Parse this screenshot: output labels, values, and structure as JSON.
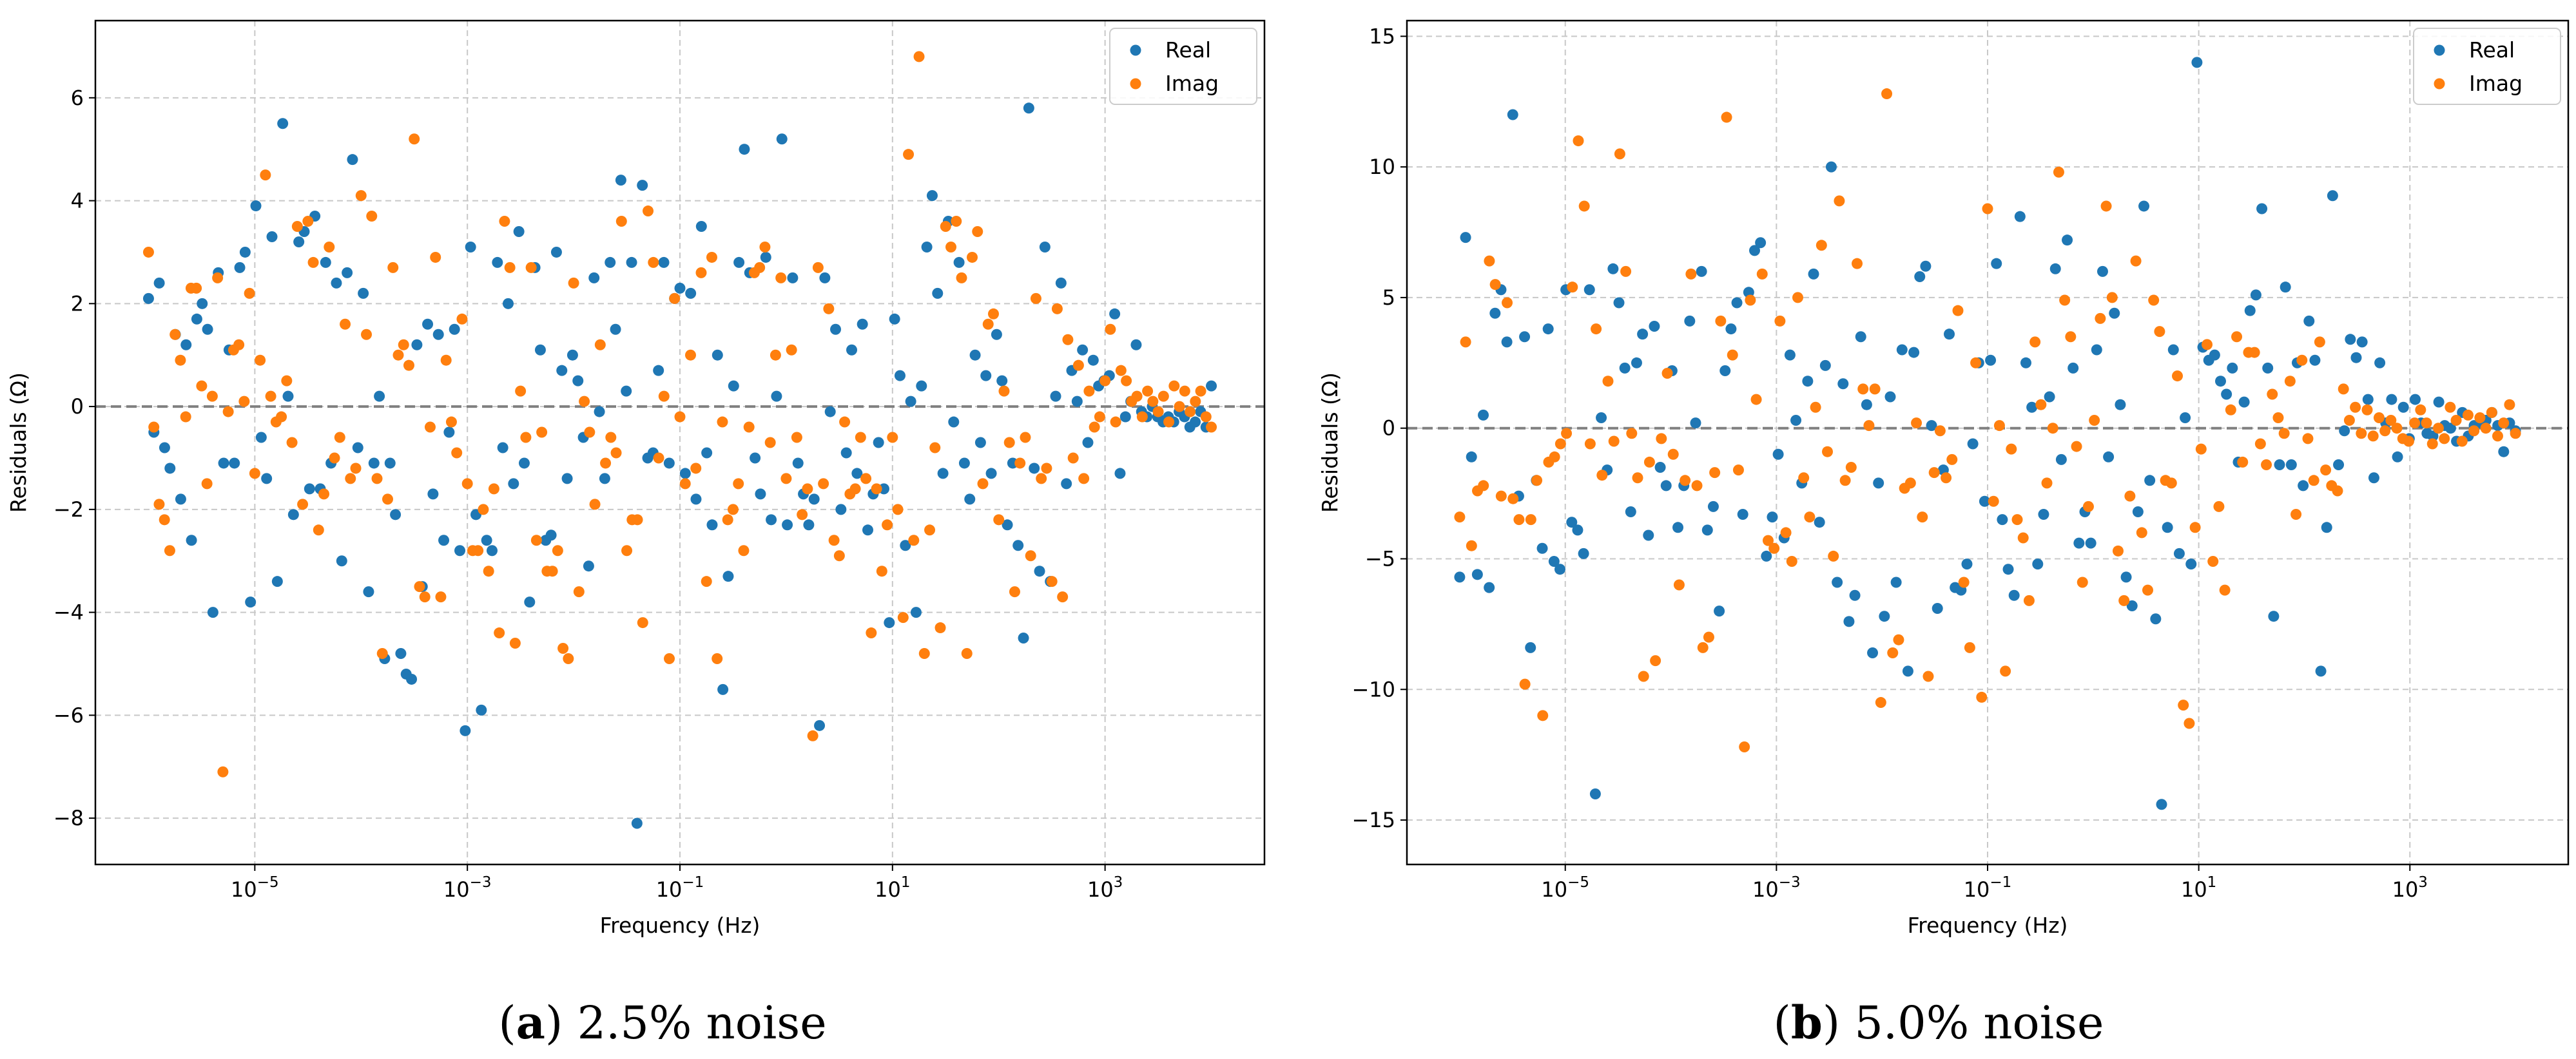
{
  "colors": {
    "real": "#1f77b4",
    "imag": "#ff7f0e",
    "grid": "#c8c8c8",
    "zero_line": "#808080"
  },
  "captions": [
    {
      "open": "(",
      "letter": "a",
      "close": ")",
      "text": " 2.5% noise"
    },
    {
      "open": "(",
      "letter": "b",
      "close": ")",
      "text": " 5.0% noise"
    }
  ],
  "chart_data": [
    {
      "type": "scatter",
      "xscale": "log",
      "xlabel": "Frequency (Hz)",
      "ylabel": "Residuals (Ω)",
      "xlim": [
        -6.5,
        4.5
      ],
      "ylim": [
        -8.9,
        7.5
      ],
      "grid": true,
      "legend": {
        "position": "top-right",
        "entries": [
          "Real",
          "Imag"
        ]
      },
      "xticks": [
        {
          "value": -5,
          "base": "10",
          "exp": "−5"
        },
        {
          "value": -3,
          "base": "10",
          "exp": "−3"
        },
        {
          "value": -1,
          "base": "10",
          "exp": "−1"
        },
        {
          "value": 1,
          "base": "10",
          "exp": "1"
        },
        {
          "value": 3,
          "base": "10",
          "exp": "3"
        }
      ],
      "yticks": [
        {
          "value": 6,
          "label": "6"
        },
        {
          "value": 4,
          "label": "4"
        },
        {
          "value": 2,
          "label": "2"
        },
        {
          "value": 0,
          "label": "0"
        },
        {
          "value": -2,
          "label": "−2"
        },
        {
          "value": -4,
          "label": "−4"
        },
        {
          "value": -6,
          "label": "−6"
        },
        {
          "value": -8,
          "label": "−8"
        }
      ],
      "reference_line_y": 0,
      "sample_span_log10_hz": [
        -6,
        4
      ],
      "series": [
        {
          "name": "Real",
          "values": [
            2.1,
            -0.5,
            2.4,
            -0.8,
            -1.2,
            1.4,
            -1.8,
            1.2,
            -2.6,
            1.7,
            2.0,
            1.5,
            -4.0,
            2.6,
            -1.1,
            1.1,
            -1.1,
            2.7,
            3.0,
            -3.8,
            3.9,
            -0.6,
            -1.4,
            3.3,
            -3.4,
            5.5,
            0.2,
            -2.1,
            3.2,
            3.4,
            -1.6,
            3.7,
            -1.6,
            2.8,
            -1.1,
            2.4,
            -3.0,
            2.6,
            4.8,
            -0.8,
            2.2,
            -3.6,
            -1.1,
            0.2,
            -4.9,
            -1.1,
            -2.1,
            -4.8,
            -5.2,
            -5.3,
            1.2,
            -3.5,
            1.6,
            -1.7,
            1.4,
            -2.6,
            -0.5,
            1.5,
            -2.8,
            -6.3,
            3.1,
            -2.1,
            -5.9,
            -2.6,
            -2.8,
            2.8,
            -0.8,
            2.0,
            -1.5,
            3.4,
            -1.1,
            -3.8,
            2.7,
            1.1,
            -2.6,
            -2.5,
            3.0,
            0.7,
            -1.4,
            1.0,
            0.5,
            -0.6,
            -3.1,
            2.5,
            -0.1,
            -1.4,
            2.8,
            1.5,
            4.4,
            0.3,
            2.8,
            -8.1,
            4.3,
            -1.0,
            -0.9,
            0.7,
            2.8,
            -1.1,
            2.1,
            2.3,
            -1.3,
            2.2,
            -1.8,
            3.5,
            -0.9,
            -2.3,
            1.0,
            -5.5,
            -3.3,
            0.4,
            2.8,
            5.0,
            2.6,
            -1.0,
            -1.7,
            2.9,
            -2.2,
            0.2,
            5.2,
            -2.3,
            2.5,
            -1.1,
            -1.7,
            -2.3,
            -1.8,
            -6.2,
            2.5,
            -0.1,
            1.5,
            -2.0,
            -0.9,
            1.1,
            -1.3,
            1.6,
            -2.4,
            -1.7,
            -0.7,
            -1.6,
            -4.2,
            1.7,
            0.6,
            -2.7,
            0.1,
            -4.0,
            0.4,
            3.1,
            4.1,
            2.2,
            -1.3,
            3.6,
            -0.3,
            2.8,
            -1.1,
            -1.8,
            1.0,
            -0.7,
            0.6,
            -1.3,
            1.4,
            0.5,
            -2.3,
            -1.1,
            -2.7,
            -4.5,
            5.8,
            -1.2,
            -3.2,
            3.1,
            -3.4,
            0.2,
            2.4,
            -1.5,
            0.7,
            0.1,
            1.1,
            -0.7,
            0.9,
            0.4,
            0.5,
            0.6,
            1.8,
            -1.3,
            -0.2,
            0.1,
            1.2,
            -0.1,
            -0.2,
            0.0,
            -0.2,
            -0.3,
            -0.2,
            -0.3,
            -0.1,
            -0.2,
            -0.4,
            -0.3,
            -0.1,
            -0.4,
            0.4
          ]
        },
        {
          "name": "Imag",
          "values": [
            3.0,
            -0.4,
            -1.9,
            -2.2,
            -2.8,
            1.4,
            0.9,
            -0.2,
            2.3,
            2.3,
            0.4,
            -1.5,
            0.2,
            2.5,
            -7.1,
            -0.1,
            1.1,
            1.2,
            0.1,
            2.2,
            -1.3,
            0.9,
            4.5,
            0.2,
            -0.3,
            -0.2,
            0.5,
            -0.7,
            3.5,
            -1.9,
            3.6,
            2.8,
            -2.4,
            -1.7,
            3.1,
            -1.0,
            -0.6,
            1.6,
            -1.4,
            -1.2,
            4.1,
            1.4,
            3.7,
            -1.4,
            -4.8,
            -1.8,
            2.7,
            1.0,
            1.2,
            0.8,
            5.2,
            -3.5,
            -3.7,
            -0.4,
            2.9,
            -3.7,
            0.9,
            -0.3,
            -0.9,
            1.7,
            -1.5,
            -2.8,
            -2.8,
            -2.0,
            -3.2,
            -1.6,
            -4.4,
            3.6,
            2.7,
            -4.6,
            0.3,
            -0.6,
            2.7,
            -2.6,
            -0.5,
            -3.2,
            -3.2,
            -2.8,
            -4.7,
            -4.9,
            2.4,
            -3.6,
            0.1,
            -0.5,
            -1.9,
            1.2,
            -1.1,
            -0.6,
            -0.9,
            3.6,
            -2.8,
            -2.2,
            -2.2,
            -4.2,
            3.8,
            2.8,
            -1.0,
            0.2,
            -4.9,
            2.1,
            -0.2,
            -1.5,
            1.0,
            -1.2,
            2.6,
            -3.4,
            2.9,
            -4.9,
            -0.3,
            -2.2,
            -2.0,
            -1.5,
            -2.8,
            -0.4,
            2.6,
            2.7,
            3.1,
            -0.7,
            1.0,
            2.5,
            -1.4,
            1.1,
            -0.6,
            -2.1,
            -1.6,
            -6.4,
            2.7,
            -1.5,
            1.9,
            -2.6,
            -2.9,
            -0.3,
            -1.7,
            -1.6,
            -0.6,
            -1.4,
            -4.4,
            -1.6,
            -3.2,
            -2.3,
            -0.6,
            -2.0,
            -4.1,
            4.9,
            -2.6,
            6.8,
            -4.8,
            -2.4,
            -0.8,
            -4.3,
            3.5,
            3.1,
            3.6,
            2.5,
            -4.8,
            2.9,
            3.4,
            -1.5,
            1.6,
            1.8,
            -2.2,
            0.3,
            -0.7,
            -3.6,
            -1.1,
            -0.6,
            -2.9,
            2.1,
            -1.4,
            -1.2,
            -3.4,
            1.9,
            -3.7,
            1.3,
            -1.0,
            0.8,
            -1.4,
            0.3,
            -0.4,
            -0.2,
            0.5,
            1.5,
            -0.3,
            0.7,
            0.5,
            0.1,
            0.2,
            -0.2,
            0.3,
            0.1,
            -0.1,
            0.2,
            -0.3,
            0.4,
            0.0,
            0.3,
            -0.1,
            0.1,
            0.3,
            -0.2,
            -0.4
          ]
        }
      ]
    },
    {
      "type": "scatter",
      "xscale": "log",
      "xlabel": "Frequency (Hz)",
      "ylabel": "Residuals (Ω)",
      "xlim": [
        -6.5,
        4.5
      ],
      "ylim": [
        -16.7,
        15.6
      ],
      "grid": true,
      "legend": {
        "position": "top-right",
        "entries": [
          "Real",
          "Imag"
        ]
      },
      "xticks": [
        {
          "value": -5,
          "base": "10",
          "exp": "−5"
        },
        {
          "value": -3,
          "base": "10",
          "exp": "−3"
        },
        {
          "value": -1,
          "base": "10",
          "exp": "−1"
        },
        {
          "value": 1,
          "base": "10",
          "exp": "1"
        },
        {
          "value": 3,
          "base": "10",
          "exp": "3"
        }
      ],
      "yticks": [
        {
          "value": 15,
          "label": "15"
        },
        {
          "value": 10,
          "label": "10"
        },
        {
          "value": 5,
          "label": "5"
        },
        {
          "value": 0,
          "label": "0"
        },
        {
          "value": -5,
          "label": "−5"
        },
        {
          "value": -10,
          "label": "−10"
        },
        {
          "value": -15,
          "label": "−15"
        }
      ],
      "reference_line_y": 0,
      "sample_span_log10_hz": [
        -6,
        4
      ],
      "series": [
        {
          "name": "Real",
          "values": [
            -5.7,
            7.3,
            -1.1,
            -5.6,
            0.5,
            -6.1,
            4.4,
            5.3,
            3.3,
            12.0,
            -2.6,
            3.5,
            -8.4,
            -2.0,
            -4.6,
            3.8,
            -5.1,
            -5.4,
            5.3,
            -3.6,
            -3.9,
            -4.8,
            5.3,
            -14.0,
            0.4,
            -1.6,
            6.1,
            4.8,
            2.3,
            -3.2,
            2.5,
            3.6,
            -4.1,
            3.9,
            -1.5,
            -2.2,
            2.2,
            -3.8,
            -2.2,
            4.1,
            0.2,
            6.0,
            -3.9,
            -3.0,
            -7.0,
            2.2,
            3.8,
            4.8,
            -3.3,
            5.2,
            6.8,
            7.1,
            -4.9,
            -3.4,
            -1.0,
            -4.2,
            2.8,
            0.3,
            -2.1,
            1.8,
            5.9,
            -3.6,
            2.4,
            10.0,
            -5.9,
            1.7,
            -7.4,
            -6.4,
            3.5,
            0.9,
            -8.6,
            -2.1,
            -7.2,
            1.2,
            -5.9,
            3.0,
            -9.3,
            2.9,
            5.8,
            6.2,
            0.1,
            -6.9,
            -1.6,
            3.6,
            -6.1,
            -6.2,
            -5.2,
            -0.6,
            2.5,
            -2.8,
            2.6,
            6.3,
            -3.5,
            -5.4,
            -6.4,
            8.1,
            2.5,
            0.8,
            -5.2,
            -3.3,
            1.2,
            6.1,
            -1.2,
            7.2,
            2.3,
            -4.4,
            -3.2,
            -4.4,
            3.0,
            6.0,
            -1.1,
            4.4,
            0.9,
            -5.7,
            -6.8,
            -3.2,
            8.5,
            -2.0,
            -7.3,
            -14.4,
            -3.8,
            3.0,
            -4.8,
            0.4,
            -5.2,
            14.0,
            3.1,
            2.6,
            2.8,
            1.8,
            1.3,
            2.3,
            -1.3,
            1.0,
            4.5,
            5.1,
            8.4,
            2.3,
            -7.2,
            -1.4,
            5.4,
            -1.4,
            2.5,
            -2.2,
            4.1,
            2.6,
            -9.3,
            -3.8,
            8.9,
            -1.4,
            -0.1,
            3.4,
            2.7,
            3.3,
            1.1,
            -1.9,
            2.5,
            0.2,
            1.1,
            -1.1,
            0.8,
            -0.4,
            1.1,
            0.2,
            -0.2,
            -0.3,
            1.0,
            0.1,
            0.0,
            -0.5,
            0.6,
            -0.3,
            0.1,
            0.2,
            0.3,
            0.6,
            0.1,
            -0.9,
            0.2,
            -0.1
          ]
        },
        {
          "name": "Imag",
          "values": [
            -3.4,
            3.3,
            -4.5,
            -2.4,
            -2.2,
            6.4,
            5.5,
            -2.6,
            4.8,
            -2.7,
            -3.5,
            -9.8,
            -3.5,
            -2.0,
            -11.0,
            -1.3,
            -1.1,
            -0.6,
            -0.2,
            5.4,
            11.0,
            8.5,
            -0.6,
            3.8,
            -1.8,
            1.8,
            -0.5,
            10.5,
            6.0,
            -0.2,
            -1.9,
            -9.5,
            -1.3,
            -8.9,
            -0.4,
            2.1,
            -1.0,
            -6.0,
            -2.0,
            5.9,
            -2.2,
            -8.4,
            -8.0,
            -1.7,
            4.1,
            11.9,
            2.8,
            -1.6,
            -12.2,
            4.9,
            1.1,
            5.9,
            -4.3,
            -4.6,
            4.1,
            -4.0,
            -5.1,
            5.0,
            -1.9,
            -3.4,
            0.8,
            7.0,
            -0.9,
            -4.9,
            8.7,
            -2.0,
            -1.5,
            6.3,
            1.5,
            0.1,
            1.5,
            -10.5,
            12.8,
            -8.6,
            -8.1,
            -2.3,
            -2.1,
            0.2,
            -3.4,
            -9.5,
            -1.7,
            -0.1,
            -1.9,
            -1.2,
            4.5,
            -5.9,
            -8.4,
            2.5,
            -10.3,
            8.4,
            -2.8,
            0.1,
            -9.3,
            -0.8,
            -3.5,
            -4.2,
            -6.6,
            3.3,
            0.9,
            -2.1,
            0.0,
            9.8,
            4.9,
            3.5,
            -0.7,
            -5.9,
            -3.0,
            0.3,
            4.2,
            8.5,
            5.0,
            -4.7,
            -6.6,
            -2.6,
            6.4,
            -4.0,
            -6.2,
            4.9,
            3.7,
            -2.0,
            -2.1,
            2.0,
            -10.6,
            -11.3,
            -3.8,
            -0.8,
            3.2,
            -5.1,
            -3.0,
            -6.2,
            0.7,
            3.5,
            -1.3,
            2.9,
            2.9,
            -0.6,
            -1.4,
            1.3,
            0.4,
            -0.2,
            1.8,
            -3.3,
            2.6,
            -0.4,
            -2.0,
            3.3,
            -1.6,
            -2.2,
            -2.4,
            1.5,
            0.3,
            0.8,
            -0.2,
            0.7,
            -0.3,
            0.4,
            -0.1,
            0.3,
            0.0,
            -0.4,
            -0.5,
            0.2,
            0.7,
            0.2,
            -0.6,
            0.0,
            -0.4,
            0.8,
            0.3,
            -0.5,
            0.5,
            -0.1,
            0.4,
            0.0,
            0.6,
            -0.3,
            0.2,
            0.9,
            -0.2
          ]
        }
      ]
    }
  ]
}
